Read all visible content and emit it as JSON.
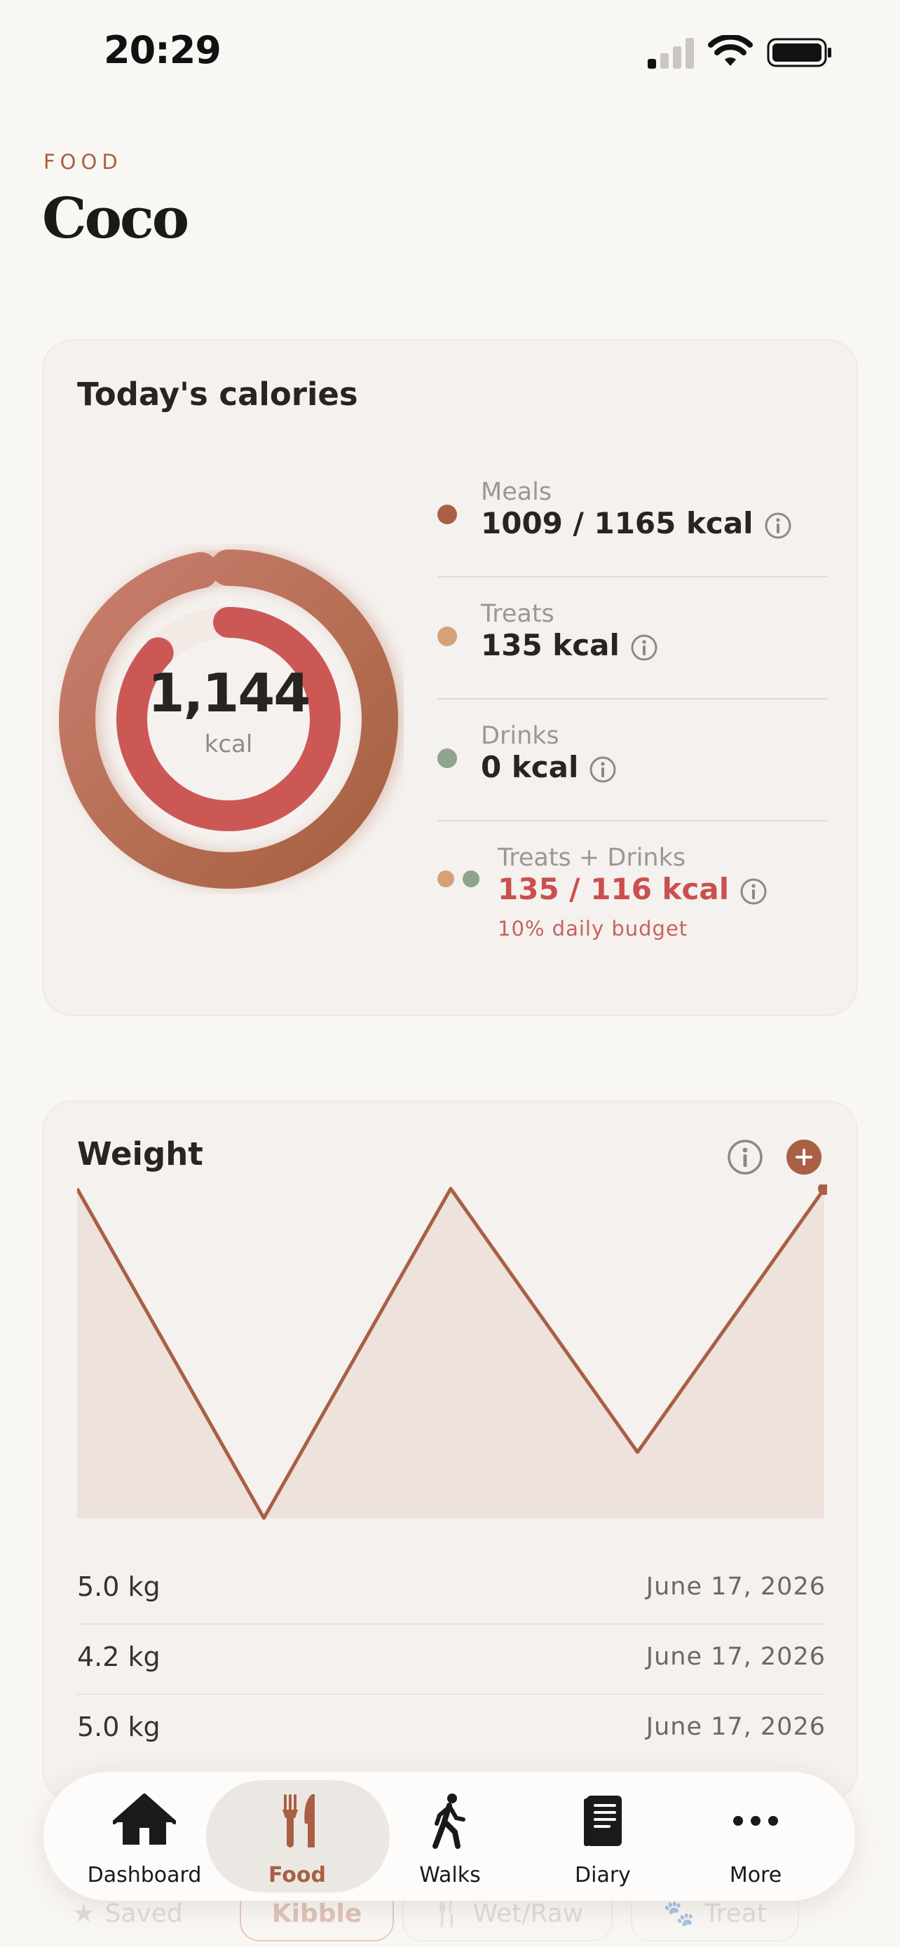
{
  "status_bar": {
    "time": "20:29"
  },
  "header": {
    "eyebrow": "FOOD",
    "title": "Coco"
  },
  "calories": {
    "title": "Today's calories",
    "total_value": "1,144",
    "total_unit": "kcal",
    "meals_progress_pct": 87,
    "outer_progress_pct": 97,
    "rows": [
      {
        "label": "Meals",
        "value": "1009 / 1165 kcal",
        "color": "#a95f44"
      },
      {
        "label": "Treats",
        "value": "135 kcal",
        "color": "#d4a27a"
      },
      {
        "label": "Drinks",
        "value": "0 kcal",
        "color": "#8fa38e"
      },
      {
        "label": "Treats + Drinks",
        "value": "135 / 116 kcal",
        "note": "10% daily budget",
        "color": "#c9504e"
      }
    ]
  },
  "weight": {
    "title": "Weight",
    "entries": [
      {
        "value": "5.0 kg",
        "date": "June 17, 2026"
      },
      {
        "value": "4.2 kg",
        "date": "June 17, 2026"
      },
      {
        "value": "5.0 kg",
        "date": "June 17, 2026"
      }
    ]
  },
  "chart_data": {
    "type": "area",
    "title": "Weight",
    "series": [
      {
        "values": [
          5.0,
          4.2,
          5.0,
          4.36,
          5.0
        ]
      }
    ],
    "ylim": [
      4.2,
      5.0
    ],
    "grid": false,
    "color": "#a95f44"
  },
  "filters": [
    {
      "label": "Saved",
      "icon": "star-icon"
    },
    {
      "label": "Kibble",
      "active": true
    },
    {
      "label": "Wet/Raw",
      "icon": "fork-knife-icon"
    },
    {
      "label": "Treat",
      "icon": "paw-icon"
    }
  ],
  "tabs": [
    {
      "label": "Dashboard",
      "icon": "house-icon"
    },
    {
      "label": "Food",
      "icon": "fork-knife-icon",
      "active": true
    },
    {
      "label": "Walks",
      "icon": "walking-icon"
    },
    {
      "label": "Diary",
      "icon": "book-icon"
    },
    {
      "label": "More",
      "icon": "ellipsis-icon"
    }
  ],
  "colors": {
    "accent": "#a95f44",
    "warning": "#c9504e",
    "background": "#f9f7f4"
  }
}
